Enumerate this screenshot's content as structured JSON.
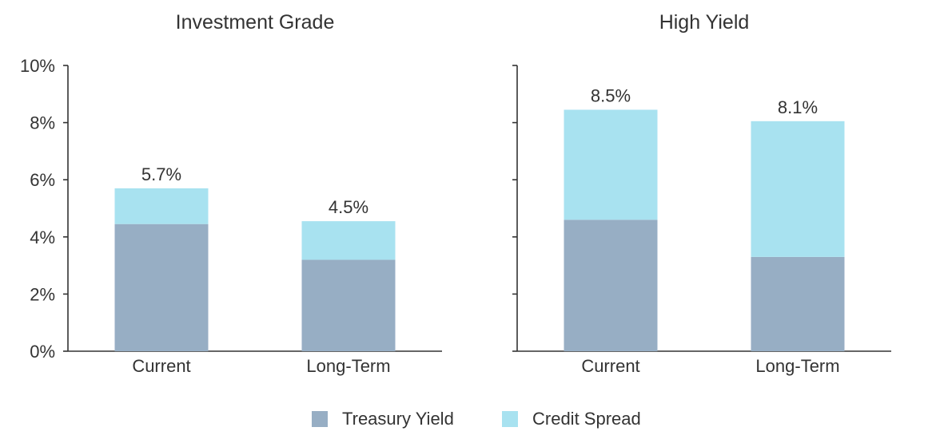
{
  "chart_data": [
    {
      "type": "bar",
      "stacked": true,
      "title": "Investment Grade",
      "categories": [
        "Current",
        "Long-Term"
      ],
      "series": [
        {
          "name": "Treasury Yield",
          "values": [
            4.45,
            3.2
          ],
          "color": "#97aec4"
        },
        {
          "name": "Credit Spread",
          "values": [
            1.25,
            1.35
          ],
          "color": "#a8e2f0"
        }
      ],
      "totals": [
        "5.7%",
        "4.5%"
      ],
      "ylim": [
        0,
        10
      ],
      "yticks": [
        "0%",
        "2%",
        "4%",
        "6%",
        "8%",
        "10%"
      ],
      "xlabel": "",
      "ylabel": ""
    },
    {
      "type": "bar",
      "stacked": true,
      "title": "High Yield",
      "categories": [
        "Current",
        "Long-Term"
      ],
      "series": [
        {
          "name": "Treasury Yield",
          "values": [
            4.6,
            3.3
          ],
          "color": "#97aec4"
        },
        {
          "name": "Credit Spread",
          "values": [
            3.85,
            4.75
          ],
          "color": "#a8e2f0"
        }
      ],
      "totals": [
        "8.5%",
        "8.1%"
      ],
      "ylim": [
        0,
        10
      ],
      "yticks": [
        "",
        "",
        "",
        "",
        "",
        ""
      ],
      "xlabel": "",
      "ylabel": ""
    }
  ],
  "legend": {
    "position": "bottom",
    "items": [
      {
        "name": "Treasury Yield",
        "color": "#97aec4"
      },
      {
        "name": "Credit Spread",
        "color": "#a8e2f0"
      }
    ]
  }
}
